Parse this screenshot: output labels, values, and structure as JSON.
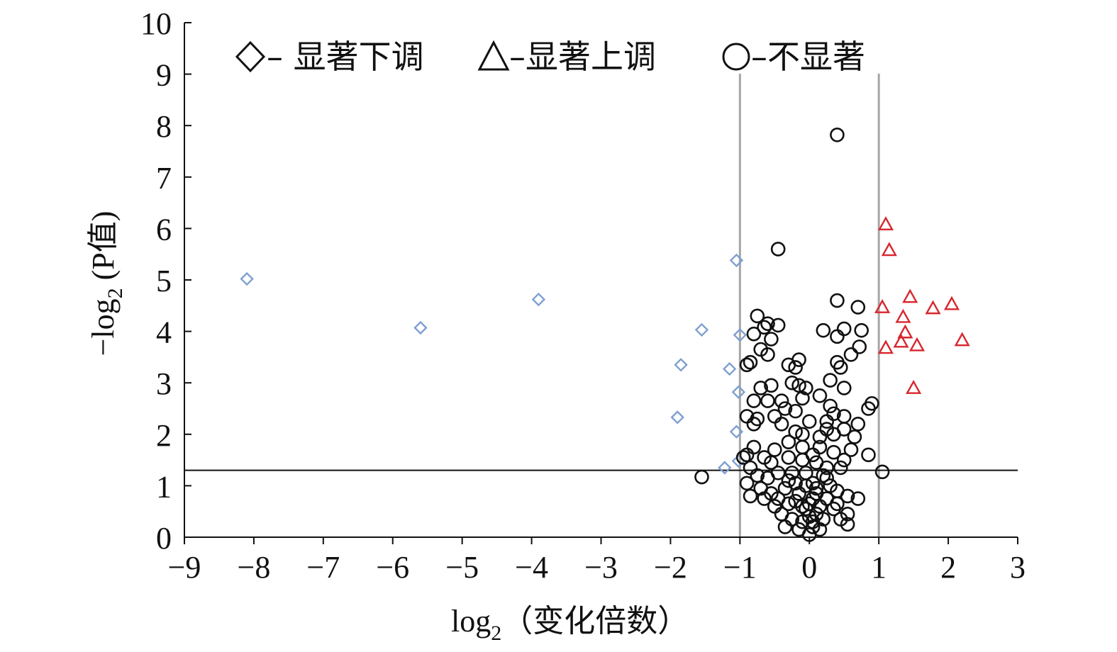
{
  "chart_data": {
    "type": "scatter",
    "title": "",
    "xlabel_main": "log",
    "xlabel_sub": "2",
    "xlabel_rest": "（变化倍数）",
    "ylabel_main": "−log",
    "ylabel_sub": "2",
    "ylabel_rest": " (P值)",
    "xlim": [
      -9,
      3
    ],
    "ylim": [
      0,
      10
    ],
    "xticks": [
      -9,
      -8,
      -7,
      -6,
      -5,
      -4,
      -3,
      -2,
      -1,
      0,
      1,
      2,
      3
    ],
    "xtick_labels": [
      "−9",
      "−8",
      "−7",
      "−6",
      "−5",
      "−4",
      "−3",
      "−2",
      "−1",
      "0",
      "1",
      "2",
      "3"
    ],
    "yticks": [
      0,
      1,
      2,
      3,
      4,
      5,
      6,
      7,
      8,
      9,
      10
    ],
    "ytick_labels": [
      "0",
      "1",
      "2",
      "3",
      "4",
      "5",
      "6",
      "7",
      "8",
      "9",
      "10"
    ],
    "reference_lines": {
      "vertical_x": [
        -1,
        1
      ],
      "horizontal_y": 1.3,
      "vertical_color": "#a6a6a6",
      "horizontal_color": "#111111"
    },
    "legend": {
      "placement": "top",
      "entries": [
        {
          "symbol": "diamond",
          "label": "– 显著下调"
        },
        {
          "symbol": "triangle",
          "label": "–显著上调"
        },
        {
          "symbol": "circle",
          "label": "–不显著"
        }
      ]
    },
    "series": [
      {
        "marker": "diamond",
        "color": "#7f9fd0",
        "points": [
          [
            -8.1,
            5.02
          ],
          [
            -5.6,
            4.07
          ],
          [
            -3.9,
            4.62
          ],
          [
            -1.55,
            4.03
          ],
          [
            -1.85,
            3.35
          ],
          [
            -1.9,
            2.33
          ],
          [
            -1.05,
            5.38
          ],
          [
            -1.0,
            3.93
          ],
          [
            -1.15,
            3.27
          ],
          [
            -1.02,
            2.82
          ],
          [
            -1.05,
            2.05
          ],
          [
            -1.02,
            1.48
          ],
          [
            -1.22,
            1.35
          ]
        ]
      },
      {
        "marker": "triangle",
        "color": "#d7262d",
        "points": [
          [
            1.1,
            6.08
          ],
          [
            1.15,
            5.58
          ],
          [
            1.05,
            4.47
          ],
          [
            1.1,
            3.68
          ],
          [
            1.45,
            4.67
          ],
          [
            1.35,
            4.28
          ],
          [
            1.38,
            3.98
          ],
          [
            1.32,
            3.8
          ],
          [
            1.55,
            3.73
          ],
          [
            1.78,
            4.45
          ],
          [
            2.05,
            4.53
          ],
          [
            2.2,
            3.83
          ],
          [
            1.5,
            2.9
          ]
        ]
      },
      {
        "marker": "circle",
        "color": "#111111",
        "points": [
          [
            0.4,
            7.82
          ],
          [
            -0.45,
            5.6
          ],
          [
            -1.55,
            1.17
          ],
          [
            1.05,
            1.27
          ],
          [
            0.4,
            4.6
          ],
          [
            0.7,
            4.47
          ],
          [
            -0.75,
            4.3
          ],
          [
            -0.45,
            4.12
          ],
          [
            0.2,
            4.02
          ],
          [
            0.5,
            4.05
          ],
          [
            0.75,
            4.02
          ],
          [
            0.4,
            3.9
          ],
          [
            0.72,
            3.7
          ],
          [
            0.6,
            3.55
          ],
          [
            0.45,
            3.3
          ],
          [
            0.4,
            3.4
          ],
          [
            0.3,
            3.05
          ],
          [
            0.5,
            2.9
          ],
          [
            0.15,
            2.75
          ],
          [
            0.9,
            2.6
          ],
          [
            0.85,
            2.5
          ],
          [
            0.7,
            2.2
          ],
          [
            0.5,
            2.1
          ],
          [
            0.85,
            1.6
          ],
          [
            0.35,
            2.0
          ],
          [
            0.6,
            1.7
          ],
          [
            0.5,
            1.5
          ],
          [
            0.45,
            1.35
          ],
          [
            0.15,
            1.95
          ],
          [
            0.25,
            2.25
          ],
          [
            0.35,
            2.4
          ],
          [
            -0.85,
            3.4
          ],
          [
            -0.9,
            3.35
          ],
          [
            -0.6,
            3.55
          ],
          [
            -0.7,
            3.65
          ],
          [
            -0.55,
            3.85
          ],
          [
            -0.65,
            4.08
          ],
          [
            -0.6,
            4.15
          ],
          [
            -0.8,
            3.95
          ],
          [
            -0.3,
            3.35
          ],
          [
            -0.2,
            3.3
          ],
          [
            -0.15,
            3.45
          ],
          [
            -0.25,
            3.0
          ],
          [
            -0.15,
            2.95
          ],
          [
            -0.05,
            2.9
          ],
          [
            -0.7,
            2.9
          ],
          [
            -0.55,
            2.95
          ],
          [
            -0.8,
            2.65
          ],
          [
            -0.6,
            2.65
          ],
          [
            -0.35,
            2.5
          ],
          [
            -0.4,
            2.2
          ],
          [
            -0.2,
            2.05
          ],
          [
            -0.1,
            2.0
          ],
          [
            -0.75,
            2.3
          ],
          [
            -0.9,
            2.35
          ],
          [
            -0.8,
            2.2
          ],
          [
            -0.95,
            1.55
          ],
          [
            -0.9,
            1.6
          ],
          [
            -0.8,
            1.75
          ],
          [
            -0.65,
            1.55
          ],
          [
            -0.5,
            1.7
          ],
          [
            -0.3,
            1.55
          ],
          [
            -0.1,
            1.5
          ],
          [
            0.1,
            1.45
          ],
          [
            0.25,
            1.35
          ],
          [
            -0.25,
            1.25
          ],
          [
            0.2,
            1.2
          ],
          [
            -0.75,
            1.2
          ],
          [
            -0.6,
            1.15
          ],
          [
            -0.45,
            1.25
          ],
          [
            -0.2,
            1.05
          ],
          [
            0.05,
            1.05
          ],
          [
            0.3,
            1.0
          ],
          [
            0.4,
            0.9
          ],
          [
            -0.9,
            1.05
          ],
          [
            -0.7,
            0.95
          ],
          [
            -0.55,
            0.85
          ],
          [
            -0.35,
            0.95
          ],
          [
            -0.15,
            0.85
          ],
          [
            0.1,
            0.85
          ],
          [
            0.25,
            0.75
          ],
          [
            0.55,
            0.8
          ],
          [
            0.7,
            0.75
          ],
          [
            -0.85,
            0.8
          ],
          [
            -0.65,
            0.75
          ],
          [
            -0.5,
            0.6
          ],
          [
            -0.3,
            0.65
          ],
          [
            -0.1,
            0.6
          ],
          [
            0.15,
            0.6
          ],
          [
            0.35,
            0.55
          ],
          [
            0.55,
            0.45
          ],
          [
            -0.4,
            0.45
          ],
          [
            -0.25,
            0.35
          ],
          [
            0.0,
            0.4
          ],
          [
            0.2,
            0.35
          ],
          [
            0.45,
            0.35
          ],
          [
            0.55,
            0.25
          ],
          [
            -0.35,
            0.2
          ],
          [
            -0.15,
            0.15
          ],
          [
            0.05,
            0.2
          ],
          [
            0.15,
            0.15
          ],
          [
            0.0,
            0.05
          ],
          [
            -0.05,
            0.55
          ],
          [
            0.05,
            0.75
          ],
          [
            -0.05,
            1.25
          ],
          [
            0.05,
            1.6
          ],
          [
            0.0,
            2.25
          ],
          [
            -0.1,
            2.7
          ],
          [
            0.3,
            2.55
          ],
          [
            0.5,
            2.35
          ],
          [
            0.65,
            1.95
          ],
          [
            -0.5,
            2.35
          ],
          [
            -0.4,
            2.65
          ],
          [
            -0.2,
            2.45
          ],
          [
            -0.1,
            1.75
          ],
          [
            0.15,
            1.75
          ],
          [
            0.35,
            1.65
          ],
          [
            -0.55,
            1.45
          ],
          [
            -0.85,
            1.35
          ],
          [
            -0.3,
            1.1
          ],
          [
            -0.45,
            0.75
          ],
          [
            -0.2,
            0.7
          ],
          [
            0.1,
            0.95
          ],
          [
            0.25,
            1.15
          ],
          [
            0.4,
            0.65
          ],
          [
            -0.1,
            0.3
          ],
          [
            0.1,
            0.45
          ],
          [
            -0.3,
            1.85
          ],
          [
            0.25,
            2.1
          ],
          [
            -0.05,
            1.0
          ],
          [
            0.0,
            0.65
          ],
          [
            0.05,
            0.3
          ]
        ]
      }
    ]
  }
}
